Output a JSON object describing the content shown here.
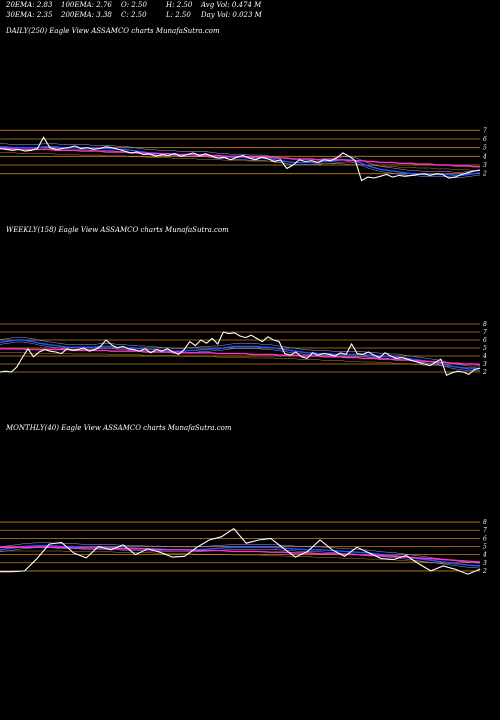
{
  "header": {
    "row1": [
      {
        "label": "20EMA: 2.83",
        "key": "ema20"
      },
      {
        "label": "100EMA: 2.76",
        "key": "ema100"
      },
      {
        "label": "O: 2.50",
        "key": "open"
      },
      {
        "label": "H: 2.50",
        "key": "high"
      },
      {
        "label": "Avg Vol: 0.474  M",
        "key": "avgvol"
      }
    ],
    "row2": [
      {
        "label": "30EMA: 2.35",
        "key": "ema30"
      },
      {
        "label": "200EMA: 3.38",
        "key": "ema200"
      },
      {
        "label": "C: 2.50",
        "key": "close"
      },
      {
        "label": "L: 2.50",
        "key": "low"
      },
      {
        "label": "Day Vol: 0.023 M",
        "key": "dayvol"
      }
    ]
  },
  "colors": {
    "price": "#ffffff",
    "ema_short": "#2255ff",
    "ema_long": "#ff33cc",
    "level": "#c8801e",
    "ema_thin": "#9aa0ff"
  },
  "chart_data": [
    {
      "type": "line",
      "title": "DAILY(250) Eagle   View  ASSAMCO charts MunafaSutra.com",
      "yticks": [
        2,
        3,
        4,
        5,
        6,
        7
      ],
      "ylim": [
        1.5,
        7.5
      ],
      "levels": [
        2,
        3,
        4,
        5,
        6,
        7
      ],
      "price": [
        4.9,
        4.8,
        4.7,
        4.8,
        4.6,
        4.7,
        4.9,
        6.2,
        5.0,
        4.8,
        4.9,
        5.0,
        5.2,
        4.9,
        5.0,
        4.8,
        4.9,
        5.1,
        5.0,
        4.8,
        4.6,
        4.4,
        4.5,
        4.2,
        4.3,
        4.0,
        4.2,
        4.1,
        4.3,
        4.0,
        4.2,
        4.4,
        4.1,
        4.3,
        4.0,
        3.8,
        3.9,
        3.6,
        3.9,
        4.1,
        3.8,
        3.6,
        3.9,
        3.7,
        3.4,
        3.6,
        2.6,
        3.0,
        3.6,
        3.4,
        3.5,
        3.3,
        3.6,
        3.5,
        3.8,
        4.4,
        4.0,
        3.5,
        1.2,
        1.6,
        1.5,
        1.7,
        1.9,
        1.6,
        1.8,
        1.7,
        1.8,
        1.9,
        2.0,
        1.8,
        2.0,
        1.9,
        1.5,
        1.6,
        1.9,
        2.1,
        2.3,
        2.4
      ],
      "ema_short": [
        5.1,
        5.1,
        5.0,
        5.0,
        5.0,
        5.0,
        5.0,
        5.1,
        5.1,
        5.1,
        5.0,
        5.0,
        5.0,
        5.0,
        5.0,
        4.9,
        4.9,
        4.9,
        4.9,
        4.8,
        4.8,
        4.7,
        4.6,
        4.5,
        4.4,
        4.4,
        4.3,
        4.3,
        4.3,
        4.2,
        4.2,
        4.2,
        4.2,
        4.2,
        4.1,
        4.0,
        4.0,
        3.9,
        3.9,
        3.9,
        3.8,
        3.8,
        3.8,
        3.7,
        3.6,
        3.5,
        3.4,
        3.3,
        3.3,
        3.3,
        3.3,
        3.3,
        3.4,
        3.4,
        3.5,
        3.6,
        3.6,
        3.5,
        3.2,
        2.9,
        2.7,
        2.5,
        2.4,
        2.3,
        2.2,
        2.1,
        2.0,
        2.0,
        1.9,
        1.9,
        1.9,
        1.9,
        1.9,
        1.8,
        1.8,
        1.9,
        2.0,
        2.1
      ],
      "ema_long": [
        4.9,
        4.9,
        4.9,
        4.8,
        4.8,
        4.8,
        4.8,
        4.8,
        4.8,
        4.7,
        4.7,
        4.7,
        4.7,
        4.6,
        4.6,
        4.6,
        4.6,
        4.5,
        4.5,
        4.5,
        4.5,
        4.4,
        4.4,
        4.4,
        4.3,
        4.3,
        4.3,
        4.3,
        4.2,
        4.2,
        4.2,
        4.2,
        4.1,
        4.1,
        4.1,
        4.1,
        4.0,
        4.0,
        4.0,
        4.0,
        3.9,
        3.9,
        3.9,
        3.9,
        3.8,
        3.8,
        3.8,
        3.7,
        3.7,
        3.7,
        3.7,
        3.6,
        3.6,
        3.6,
        3.6,
        3.6,
        3.5,
        3.5,
        3.5,
        3.4,
        3.4,
        3.3,
        3.3,
        3.3,
        3.2,
        3.2,
        3.2,
        3.1,
        3.1,
        3.1,
        3.0,
        3.0,
        3.0,
        2.9,
        2.9,
        2.9,
        2.8,
        2.8
      ]
    },
    {
      "type": "line",
      "title": "WEEKLY(158) Eagle   View  ASSAMCO charts MunafaSutra.com",
      "yticks": [
        2,
        3,
        4,
        5,
        6,
        7,
        8
      ],
      "ylim": [
        1.5,
        8.5
      ],
      "levels": [
        2,
        3,
        4,
        5,
        6,
        7,
        8
      ],
      "price": [
        2.0,
        2.1,
        2.0,
        2.6,
        3.8,
        4.9,
        3.9,
        4.5,
        4.8,
        4.6,
        4.5,
        4.3,
        4.9,
        4.7,
        4.8,
        5.0,
        4.6,
        4.8,
        5.2,
        6.0,
        5.4,
        5.0,
        5.2,
        4.9,
        4.8,
        4.6,
        4.9,
        4.4,
        4.8,
        4.6,
        4.9,
        4.5,
        4.2,
        4.8,
        5.8,
        5.3,
        6.0,
        5.6,
        6.2,
        5.5,
        7.0,
        6.8,
        6.9,
        6.5,
        6.3,
        6.6,
        6.2,
        5.8,
        6.4,
        6.0,
        5.8,
        4.3,
        4.1,
        4.5,
        3.9,
        3.7,
        4.4,
        4.1,
        4.3,
        4.2,
        4.0,
        4.4,
        4.2,
        5.5,
        4.3,
        4.2,
        4.5,
        4.1,
        3.8,
        4.4,
        4.0,
        3.7,
        3.8,
        3.6,
        3.4,
        3.2,
        3.0,
        2.8,
        3.2,
        3.6,
        1.6,
        1.9,
        2.1,
        2.0,
        1.7,
        2.3,
        2.5
      ],
      "ema_short": [
        5.7,
        5.8,
        5.9,
        6.0,
        6.0,
        5.9,
        5.8,
        5.6,
        5.5,
        5.4,
        5.3,
        5.2,
        5.1,
        5.1,
        5.1,
        5.1,
        5.1,
        5.1,
        5.2,
        5.2,
        5.2,
        5.1,
        5.1,
        5.0,
        5.0,
        4.9,
        4.9,
        4.8,
        4.8,
        4.7,
        4.7,
        4.6,
        4.6,
        4.6,
        4.7,
        4.7,
        4.8,
        4.8,
        4.9,
        4.9,
        5.0,
        5.1,
        5.2,
        5.2,
        5.2,
        5.2,
        5.2,
        5.1,
        5.1,
        5.0,
        4.9,
        4.8,
        4.7,
        4.6,
        4.5,
        4.4,
        4.4,
        4.3,
        4.3,
        4.3,
        4.2,
        4.2,
        4.2,
        4.2,
        4.2,
        4.2,
        4.1,
        4.1,
        4.0,
        4.0,
        3.9,
        3.9,
        3.8,
        3.7,
        3.6,
        3.5,
        3.4,
        3.3,
        3.2,
        3.1,
        2.9,
        2.7,
        2.6,
        2.5,
        2.4,
        2.4,
        2.4
      ],
      "ema_long": [
        4.9,
        4.9,
        4.9,
        4.9,
        4.9,
        4.8,
        4.8,
        4.8,
        4.8,
        4.8,
        4.8,
        4.8,
        4.8,
        4.7,
        4.7,
        4.7,
        4.7,
        4.7,
        4.7,
        4.7,
        4.6,
        4.6,
        4.6,
        4.6,
        4.6,
        4.6,
        4.5,
        4.5,
        4.5,
        4.5,
        4.5,
        4.5,
        4.5,
        4.4,
        4.4,
        4.4,
        4.4,
        4.4,
        4.4,
        4.3,
        4.3,
        4.3,
        4.3,
        4.3,
        4.3,
        4.2,
        4.2,
        4.2,
        4.2,
        4.2,
        4.1,
        4.1,
        4.1,
        4.1,
        4.0,
        4.0,
        4.0,
        4.0,
        3.9,
        3.9,
        3.9,
        3.9,
        3.8,
        3.8,
        3.8,
        3.7,
        3.7,
        3.7,
        3.6,
        3.6,
        3.6,
        3.5,
        3.5,
        3.5,
        3.4,
        3.4,
        3.3,
        3.3,
        3.3,
        3.2,
        3.2,
        3.1,
        3.1,
        3.0,
        3.0,
        3.0,
        2.9
      ]
    },
    {
      "type": "line",
      "title": "MONTHLY(40) Eagle   View  ASSAMCO charts MunafaSutra.com",
      "yticks": [
        2,
        3,
        4,
        5,
        6,
        7,
        8
      ],
      "ylim": [
        1.5,
        8.5
      ],
      "levels": [
        2,
        3,
        4,
        5,
        6,
        7,
        8
      ],
      "price": [
        1.9,
        1.9,
        2.0,
        3.5,
        5.3,
        5.5,
        4.2,
        3.6,
        5.0,
        4.6,
        5.2,
        4.0,
        4.7,
        4.3,
        3.7,
        3.8,
        4.9,
        5.8,
        6.2,
        7.2,
        5.4,
        5.8,
        6.0,
        4.8,
        3.7,
        4.4,
        5.8,
        4.6,
        3.8,
        4.9,
        4.2,
        3.5,
        3.4,
        3.9,
        2.9,
        2.0,
        2.6,
        2.2,
        1.6,
        2.2
      ],
      "ema_short": [
        4.6,
        4.8,
        5.0,
        5.1,
        5.1,
        5.0,
        5.0,
        4.9,
        4.9,
        4.9,
        4.8,
        4.8,
        4.7,
        4.7,
        4.6,
        4.6,
        4.6,
        4.7,
        4.8,
        4.9,
        4.9,
        4.9,
        4.9,
        4.8,
        4.7,
        4.6,
        4.6,
        4.5,
        4.4,
        4.3,
        4.2,
        4.0,
        3.9,
        3.7,
        3.5,
        3.3,
        3.1,
        2.9,
        2.7,
        2.6
      ],
      "ema_long": [
        4.9,
        4.9,
        4.9,
        4.9,
        4.9,
        4.9,
        4.8,
        4.8,
        4.8,
        4.8,
        4.7,
        4.7,
        4.7,
        4.6,
        4.6,
        4.6,
        4.5,
        4.5,
        4.5,
        4.4,
        4.4,
        4.4,
        4.3,
        4.3,
        4.2,
        4.2,
        4.1,
        4.1,
        4.0,
        4.0,
        3.9,
        3.9,
        3.8,
        3.7,
        3.6,
        3.5,
        3.4,
        3.3,
        3.2,
        3.1
      ]
    }
  ]
}
